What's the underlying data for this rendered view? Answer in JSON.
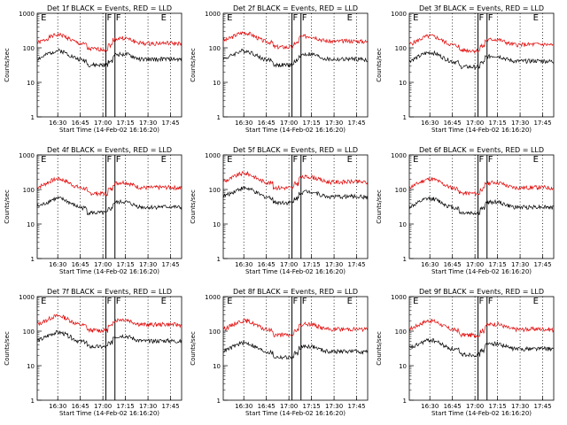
{
  "chart_data": [
    {
      "type": "line",
      "title": "Det 1f BLACK = Events, RED = LLD",
      "xlabel": "Start Time (14-Feb-02 16:16:20)",
      "ylabel": "Counts/sec",
      "yscale": "log",
      "ylim": [
        1,
        1000
      ],
      "x_ticks": [
        "16:30",
        "16:45",
        "17:00",
        "17:15",
        "17:30",
        "17:45"
      ],
      "y_ticks": [
        "1",
        "10",
        "100",
        "1000"
      ],
      "markers": [
        {
          "label": "E",
          "time": "16:17"
        },
        {
          "label": "F",
          "time": "17:02"
        },
        {
          "label": "F",
          "time": "17:08"
        },
        {
          "label": "E",
          "time": "17:38"
        }
      ],
      "series": [
        {
          "name": "LLD",
          "color": "#e00000",
          "start": 130,
          "amp": 1.0,
          "seed": 1
        },
        {
          "name": "Events",
          "color": "#000000",
          "start": 45,
          "amp": 1.0,
          "seed": 2
        }
      ]
    },
    {
      "type": "line",
      "title": "Det 2f BLACK = Events, RED = LLD",
      "xlabel": "Start Time (14-Feb-02 16:16:20)",
      "ylabel": "Counts/sec",
      "yscale": "log",
      "ylim": [
        1,
        1000
      ],
      "x_ticks": [
        "16:30",
        "16:45",
        "17:00",
        "17:15",
        "17:30",
        "17:45"
      ],
      "y_ticks": [
        "1",
        "10",
        "100",
        "1000"
      ],
      "markers": [
        {
          "label": "E",
          "time": "16:17"
        },
        {
          "label": "F",
          "time": "17:02"
        },
        {
          "label": "F",
          "time": "17:08"
        },
        {
          "label": "E",
          "time": "17:38"
        }
      ],
      "series": [
        {
          "name": "LLD",
          "color": "#e00000",
          "start": 150,
          "amp": 1.0,
          "seed": 3
        },
        {
          "name": "Events",
          "color": "#000000",
          "start": 45,
          "amp": 1.0,
          "seed": 4
        }
      ]
    },
    {
      "type": "line",
      "title": "Det 3f BLACK = Events, RED = LLD",
      "xlabel": "Start Time (14-Feb-02 16:16:20)",
      "ylabel": "Counts/sec",
      "yscale": "log",
      "ylim": [
        1,
        1000
      ],
      "x_ticks": [
        "16:30",
        "16:45",
        "17:00",
        "17:15",
        "17:30",
        "17:45"
      ],
      "y_ticks": [
        "1",
        "10",
        "100",
        "1000"
      ],
      "markers": [
        {
          "label": "E",
          "time": "16:17"
        },
        {
          "label": "F",
          "time": "17:02"
        },
        {
          "label": "F",
          "time": "17:08"
        },
        {
          "label": "E",
          "time": "17:38"
        }
      ],
      "series": [
        {
          "name": "LLD",
          "color": "#e00000",
          "start": 120,
          "amp": 1.0,
          "seed": 5
        },
        {
          "name": "Events",
          "color": "#000000",
          "start": 40,
          "amp": 1.0,
          "seed": 6
        }
      ]
    },
    {
      "type": "line",
      "title": "Det 4f BLACK = Events, RED = LLD",
      "xlabel": "Start Time (14-Feb-02 16:16:20)",
      "ylabel": "Counts/sec",
      "yscale": "log",
      "ylim": [
        1,
        1000
      ],
      "x_ticks": [
        "16:30",
        "16:45",
        "17:00",
        "17:15",
        "17:30",
        "17:45"
      ],
      "y_ticks": [
        "1",
        "10",
        "100",
        "1000"
      ],
      "markers": [
        {
          "label": "E",
          "time": "16:17"
        },
        {
          "label": "F",
          "time": "17:02"
        },
        {
          "label": "F",
          "time": "17:08"
        },
        {
          "label": "E",
          "time": "17:38"
        }
      ],
      "series": [
        {
          "name": "LLD",
          "color": "#e00000",
          "start": 110,
          "amp": 1.0,
          "seed": 7
        },
        {
          "name": "Events",
          "color": "#000000",
          "start": 30,
          "amp": 1.0,
          "seed": 8
        }
      ]
    },
    {
      "type": "line",
      "title": "Det 5f BLACK = Events, RED = LLD",
      "xlabel": "Start Time (14-Feb-02 16:16:20)",
      "ylabel": "Counts/sec",
      "yscale": "log",
      "ylim": [
        1,
        1000
      ],
      "x_ticks": [
        "16:30",
        "16:45",
        "17:00",
        "17:15",
        "17:30",
        "17:45"
      ],
      "y_ticks": [
        "1",
        "10",
        "100",
        "1000"
      ],
      "markers": [
        {
          "label": "E",
          "time": "16:17"
        },
        {
          "label": "F",
          "time": "17:02"
        },
        {
          "label": "F",
          "time": "17:08"
        },
        {
          "label": "E",
          "time": "17:38"
        }
      ],
      "series": [
        {
          "name": "LLD",
          "color": "#e00000",
          "start": 160,
          "amp": 1.0,
          "seed": 9
        },
        {
          "name": "Events",
          "color": "#000000",
          "start": 60,
          "amp": 1.0,
          "seed": 10
        }
      ]
    },
    {
      "type": "line",
      "title": "Det 6f BLACK = Events, RED = LLD",
      "xlabel": "Start Time (14-Feb-02 16:16:20)",
      "ylabel": "Counts/sec",
      "yscale": "log",
      "ylim": [
        1,
        1000
      ],
      "x_ticks": [
        "16:30",
        "16:45",
        "17:00",
        "17:15",
        "17:30",
        "17:45"
      ],
      "y_ticks": [
        "1",
        "10",
        "100",
        "1000"
      ],
      "markers": [
        {
          "label": "E",
          "time": "16:17"
        },
        {
          "label": "F",
          "time": "17:02"
        },
        {
          "label": "F",
          "time": "17:08"
        },
        {
          "label": "E",
          "time": "17:38"
        }
      ],
      "series": [
        {
          "name": "LLD",
          "color": "#e00000",
          "start": 110,
          "amp": 1.0,
          "seed": 11
        },
        {
          "name": "Events",
          "color": "#000000",
          "start": 30,
          "amp": 1.0,
          "seed": 12
        }
      ]
    },
    {
      "type": "line",
      "title": "Det 7f BLACK = Events, RED = LLD",
      "xlabel": "Start Time (14-Feb-02 16:16:20)",
      "ylabel": "Counts/sec",
      "yscale": "log",
      "ylim": [
        1,
        1000
      ],
      "x_ticks": [
        "16:30",
        "16:45",
        "17:00",
        "17:15",
        "17:30",
        "17:45"
      ],
      "y_ticks": [
        "1",
        "10",
        "100",
        "1000"
      ],
      "markers": [
        {
          "label": "E",
          "time": "16:17"
        },
        {
          "label": "F",
          "time": "17:02"
        },
        {
          "label": "F",
          "time": "17:08"
        },
        {
          "label": "E",
          "time": "17:38"
        }
      ],
      "series": [
        {
          "name": "LLD",
          "color": "#e00000",
          "start": 150,
          "amp": 1.0,
          "seed": 13
        },
        {
          "name": "Events",
          "color": "#000000",
          "start": 50,
          "amp": 1.0,
          "seed": 14
        }
      ]
    },
    {
      "type": "line",
      "title": "Det 8f BLACK = Events, RED = LLD",
      "xlabel": "Start Time (14-Feb-02 16:16:20)",
      "ylabel": "Counts/sec",
      "yscale": "log",
      "ylim": [
        1,
        1000
      ],
      "x_ticks": [
        "16:30",
        "16:45",
        "17:00",
        "17:15",
        "17:30",
        "17:45"
      ],
      "y_ticks": [
        "1",
        "10",
        "100",
        "1000"
      ],
      "markers": [
        {
          "label": "E",
          "time": "16:17"
        },
        {
          "label": "F",
          "time": "17:02"
        },
        {
          "label": "F",
          "time": "17:08"
        },
        {
          "label": "E",
          "time": "17:38"
        }
      ],
      "series": [
        {
          "name": "LLD",
          "color": "#e00000",
          "start": 110,
          "amp": 1.0,
          "seed": 15
        },
        {
          "name": "Events",
          "color": "#000000",
          "start": 25,
          "amp": 1.0,
          "seed": 16
        }
      ]
    },
    {
      "type": "line",
      "title": "Det 9f BLACK = Events, RED = LLD",
      "xlabel": "Start Time (14-Feb-02 16:16:20)",
      "ylabel": "Counts/sec",
      "yscale": "log",
      "ylim": [
        1,
        1000
      ],
      "x_ticks": [
        "16:30",
        "16:45",
        "17:00",
        "17:15",
        "17:30",
        "17:45"
      ],
      "y_ticks": [
        "1",
        "10",
        "100",
        "1000"
      ],
      "markers": [
        {
          "label": "E",
          "time": "16:17"
        },
        {
          "label": "F",
          "time": "17:02"
        },
        {
          "label": "F",
          "time": "17:08"
        },
        {
          "label": "E",
          "time": "17:38"
        }
      ],
      "series": [
        {
          "name": "LLD",
          "color": "#e00000",
          "start": 110,
          "amp": 1.0,
          "seed": 17
        },
        {
          "name": "Events",
          "color": "#000000",
          "start": 30,
          "amp": 1.0,
          "seed": 18
        }
      ]
    }
  ]
}
